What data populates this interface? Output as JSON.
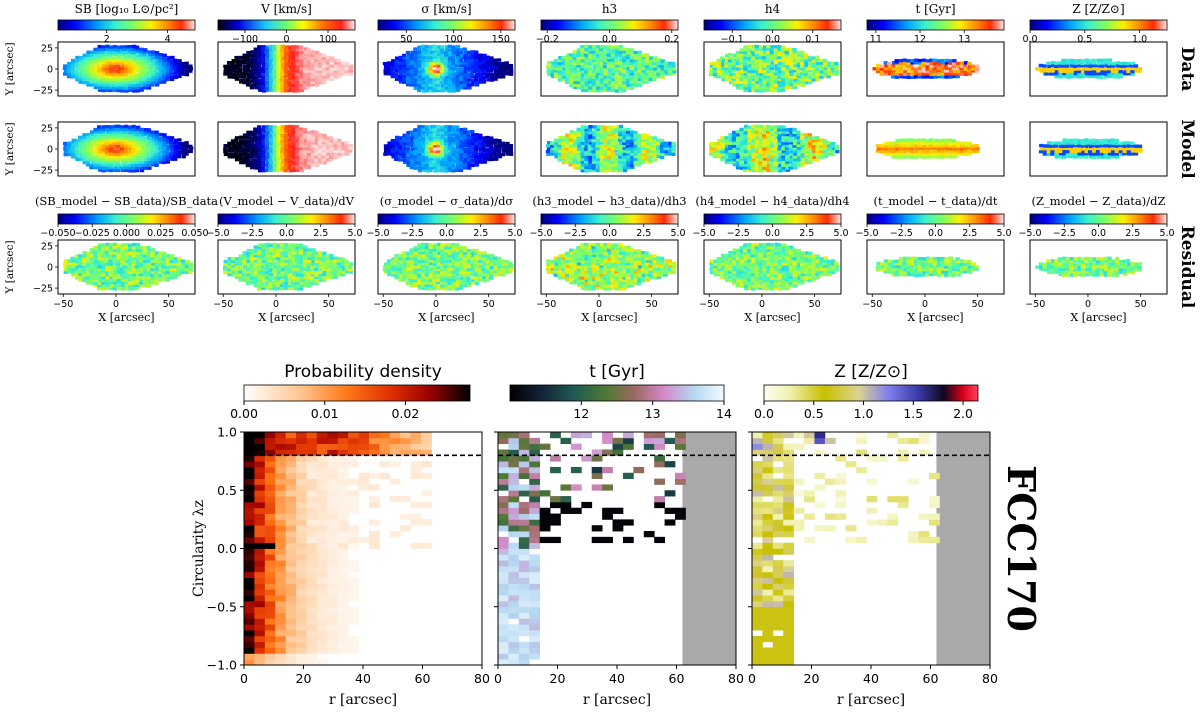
{
  "figure": {
    "galaxy_label": "FCC170",
    "row_labels": [
      "Data",
      "Model",
      "Residual"
    ]
  },
  "maps": {
    "x_ticks": [
      -50,
      0,
      50
    ],
    "y_ticks": [
      25,
      0,
      -25
    ],
    "xlabel": "X [arcsec]",
    "ylabel": "Y [arcsec]",
    "xlim": [
      -55,
      75
    ],
    "ylim": [
      -32,
      32
    ],
    "columns": [
      {
        "title": "SB [log₁₀ L⊙/pc²]",
        "cmap": "rainbow",
        "ticks": [
          {
            "v": 2,
            "l": "2"
          },
          {
            "v": 4,
            "l": "4"
          }
        ],
        "range": [
          0.4,
          4.9
        ],
        "shape": "diamond"
      },
      {
        "title": "V [km/s]",
        "cmap": "velocity",
        "ticks": [
          {
            "v": -100,
            "l": "−100"
          },
          {
            "v": 0,
            "l": "0"
          },
          {
            "v": 100,
            "l": "100"
          }
        ],
        "range": [
          -165,
          165
        ],
        "shape": "diamond"
      },
      {
        "title": "σ [km/s]",
        "cmap": "rainbow",
        "ticks": [
          {
            "v": 50,
            "l": "50"
          },
          {
            "v": 100,
            "l": "100"
          },
          {
            "v": 150,
            "l": "150"
          }
        ],
        "range": [
          20,
          165
        ],
        "shape": "diamond"
      },
      {
        "title": "h3",
        "cmap": "rainbow",
        "ticks": [
          {
            "v": -0.2,
            "l": "−0.2"
          },
          {
            "v": 0,
            "l": "0.0"
          },
          {
            "v": 0.2,
            "l": "0.2"
          }
        ],
        "range": [
          -0.22,
          0.22
        ],
        "shape": "diamond"
      },
      {
        "title": "h4",
        "cmap": "rainbow",
        "ticks": [
          {
            "v": -0.1,
            "l": "−0.1"
          },
          {
            "v": 0,
            "l": "0.0"
          },
          {
            "v": 0.1,
            "l": "0.1"
          }
        ],
        "range": [
          -0.17,
          0.17
        ],
        "shape": "diamond"
      },
      {
        "title": "t [Gyr]",
        "cmap": "rainbow",
        "ticks": [
          {
            "v": 11,
            "l": "11"
          },
          {
            "v": 12,
            "l": "12"
          },
          {
            "v": 13,
            "l": "13"
          }
        ],
        "range": [
          10.8,
          13.9
        ],
        "shape": "ellipse"
      },
      {
        "title": "Z [Z/Z⊙]",
        "cmap": "rainbow",
        "ticks": [
          {
            "v": 0,
            "l": "0.0"
          },
          {
            "v": 0.5,
            "l": "0.5"
          },
          {
            "v": 1.0,
            "l": "1.0"
          }
        ],
        "range": [
          0,
          1.25
        ],
        "shape": "ellipse"
      }
    ],
    "residual_titles": [
      "(SB_model − SB_data)/SB_data",
      "(V_model − V_data)/dV",
      "(σ_model − σ_data)/dσ",
      "(h3_model − h3_data)/dh3",
      "(h4_model − h4_data)/dh4",
      "(t_model − t_data)/dt",
      "(Z_model − Z_data)/dZ"
    ],
    "residual_ticks": [
      [
        {
          "v": -0.05,
          "l": "−0.050"
        },
        {
          "v": -0.025,
          "l": "−0.025"
        },
        {
          "v": 0,
          "l": "0.000"
        },
        {
          "v": 0.025,
          "l": "0.025"
        },
        {
          "v": 0.05,
          "l": "0.050"
        }
      ],
      [
        {
          "v": -5,
          "l": "−5.0"
        },
        {
          "v": -2.5,
          "l": "−2.5"
        },
        {
          "v": 0,
          "l": "0.0"
        },
        {
          "v": 2.5,
          "l": "2.5"
        },
        {
          "v": 5,
          "l": "5.0"
        }
      ]
    ],
    "residual_ranges": [
      [
        -0.05,
        0.05
      ],
      [
        -5,
        5
      ]
    ]
  },
  "chart_data": [
    {
      "type": "heatmap",
      "title": "Probability density",
      "xlabel": "r [arcsec]",
      "ylabel": "Circularity λz",
      "xlim": [
        0,
        80
      ],
      "ylim": [
        -1.0,
        1.0
      ],
      "x_ticks": [
        0,
        20,
        40,
        60,
        80
      ],
      "y_ticks": [
        -1.0,
        -0.5,
        0.0,
        0.5,
        1.0
      ],
      "colorbar_ticks": [
        {
          "v": 0,
          "l": "0.00"
        },
        {
          "v": 0.01,
          "l": "0.01"
        },
        {
          "v": 0.02,
          "l": "0.02"
        }
      ],
      "colorbar_range": [
        0,
        0.028
      ],
      "dashed_line_y": 0.8,
      "masked_r_min": null
    },
    {
      "type": "heatmap",
      "title": "t [Gyr]",
      "xlabel": "r [arcsec]",
      "xlim": [
        0,
        80
      ],
      "ylim": [
        -1.0,
        1.0
      ],
      "x_ticks": [
        0,
        20,
        40,
        60,
        80
      ],
      "colorbar_ticks": [
        {
          "v": 12,
          "l": "12"
        },
        {
          "v": 13,
          "l": "13"
        },
        {
          "v": 14,
          "l": "14"
        }
      ],
      "colorbar_range": [
        11.0,
        14.0
      ],
      "dashed_line_y": 0.8,
      "masked_r_min": 62
    },
    {
      "type": "heatmap",
      "title": "Z [Z/Z⊙]",
      "xlabel": "r [arcsec]",
      "xlim": [
        0,
        80
      ],
      "ylim": [
        -1.0,
        1.0
      ],
      "x_ticks": [
        0,
        20,
        40,
        60,
        80
      ],
      "colorbar_ticks": [
        {
          "v": 0,
          "l": "0.0"
        },
        {
          "v": 0.5,
          "l": "0.5"
        },
        {
          "v": 1.0,
          "l": "1.0"
        },
        {
          "v": 1.5,
          "l": "1.5"
        },
        {
          "v": 2.0,
          "l": "2.0"
        }
      ],
      "colorbar_range": [
        0,
        2.15
      ],
      "dashed_line_y": 0.8,
      "masked_r_min": 62
    }
  ]
}
